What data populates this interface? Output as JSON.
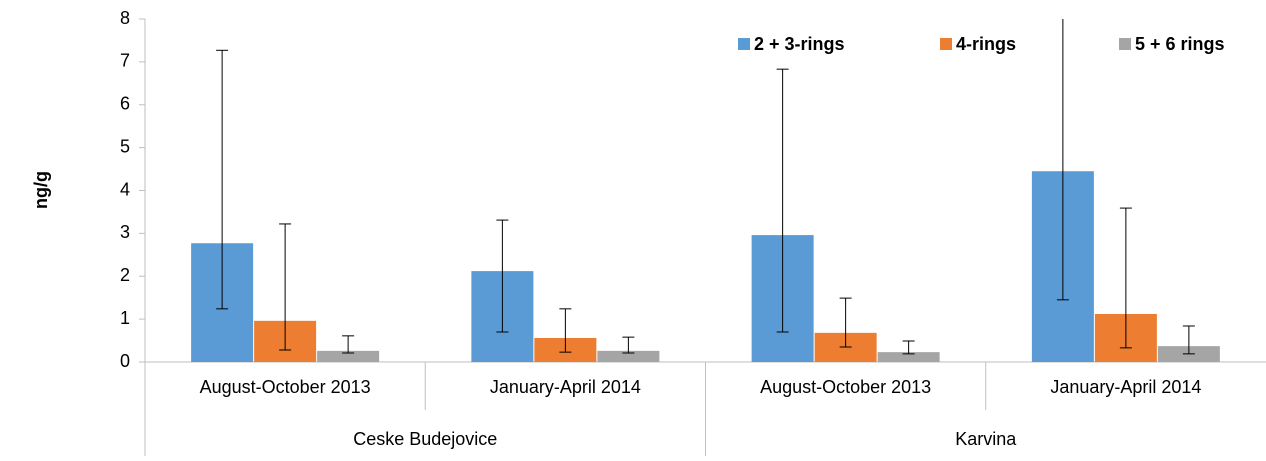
{
  "chart_data": {
    "type": "bar",
    "y_label": "ng/g",
    "categories": [
      "August-October 2013",
      "January-April 2014",
      "August-October 2013",
      "January-April 2014"
    ],
    "group_labels": [
      "Ceske Budejovice",
      "Karvina"
    ],
    "series": [
      {
        "name": "2 + 3-rings",
        "color": "#5b9bd5",
        "values": [
          2.77,
          2.12,
          2.96,
          4.45
        ],
        "err_minus": [
          1.53,
          1.42,
          2.26,
          3.0
        ],
        "err_plus": [
          4.5,
          1.19,
          3.87,
          3.85
        ]
      },
      {
        "name": "4-rings",
        "color": "#ed7d31",
        "values": [
          0.96,
          0.56,
          0.68,
          1.12
        ],
        "err_minus": [
          0.68,
          0.33,
          0.33,
          0.79
        ],
        "err_plus": [
          2.26,
          0.68,
          0.81,
          2.47
        ]
      },
      {
        "name": "5 + 6 rings",
        "color": "#a5a5a5",
        "values": [
          0.26,
          0.26,
          0.23,
          0.37
        ],
        "err_minus": [
          0.05,
          0.05,
          0.04,
          0.18
        ],
        "err_plus": [
          0.35,
          0.32,
          0.26,
          0.47
        ]
      }
    ],
    "ylim": [
      0,
      8
    ],
    "yticks": [
      0,
      1,
      2,
      3,
      4,
      5,
      6,
      7,
      8
    ],
    "grid": false,
    "legend": "top-right"
  }
}
